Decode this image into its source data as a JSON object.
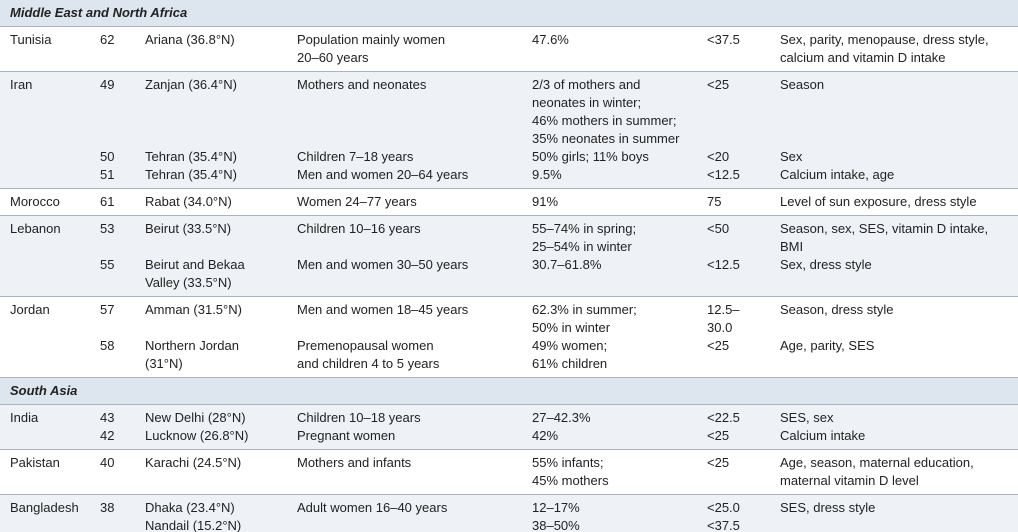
{
  "sections": [
    {
      "title": "Middle East and North Africa",
      "rows": [
        {
          "country": "Tunisia",
          "entries": [
            {
              "ref": "62",
              "location": [
                "Ariana (36.8°N)"
              ],
              "population": [
                "Population mainly women",
                "20–60 years"
              ],
              "prevalence": [
                "47.6%"
              ],
              "cutoff": [
                "<37.5"
              ],
              "factors": [
                "Sex, parity, menopause, dress style,",
                "calcium and vitamin D intake"
              ]
            }
          ]
        },
        {
          "country": "Iran",
          "entries": [
            {
              "ref": "49",
              "location": [
                "Zanjan (36.4°N)"
              ],
              "population": [
                "Mothers and neonates"
              ],
              "prevalence": [
                "2/3 of mothers and",
                "neonates in winter;",
                "46% mothers in summer;",
                "35% neonates in summer"
              ],
              "cutoff": [
                "<25"
              ],
              "factors": [
                "Season"
              ]
            },
            {
              "ref": "50",
              "location": [
                "Tehran (35.4°N)"
              ],
              "population": [
                "Children 7–18 years"
              ],
              "prevalence": [
                "50% girls; 11% boys"
              ],
              "cutoff": [
                "<20"
              ],
              "factors": [
                "Sex"
              ]
            },
            {
              "ref": "51",
              "location": [
                "Tehran (35.4°N)"
              ],
              "population": [
                "Men and women 20–64 years"
              ],
              "prevalence": [
                "9.5%"
              ],
              "cutoff": [
                "<12.5"
              ],
              "factors": [
                "Calcium intake, age"
              ]
            }
          ]
        },
        {
          "country": "Morocco",
          "entries": [
            {
              "ref": "61",
              "location": [
                "Rabat (34.0°N)"
              ],
              "population": [
                "Women 24–77 years"
              ],
              "prevalence": [
                "91%"
              ],
              "cutoff": [
                "75"
              ],
              "factors": [
                "Level of sun exposure, dress style"
              ]
            }
          ]
        },
        {
          "country": "Lebanon",
          "entries": [
            {
              "ref": "53",
              "location": [
                "Beirut (33.5°N)"
              ],
              "population": [
                "Children 10–16 years"
              ],
              "prevalence": [
                "55–74% in spring;",
                "25–54% in winter"
              ],
              "cutoff": [
                "<50"
              ],
              "factors": [
                "Season, sex, SES, vitamin D intake,",
                "BMI"
              ]
            },
            {
              "ref": "55",
              "location": [
                "Beirut and Bekaa",
                "Valley (33.5°N)"
              ],
              "population": [
                "Men and women 30–50 years"
              ],
              "prevalence": [
                "30.7–61.8%"
              ],
              "cutoff": [
                "<12.5"
              ],
              "factors": [
                "Sex, dress style"
              ]
            }
          ]
        },
        {
          "country": "Jordan",
          "entries": [
            {
              "ref": "57",
              "location": [
                "Amman (31.5°N)"
              ],
              "population": [
                "Men and women 18–45 years"
              ],
              "prevalence": [
                "62.3% in summer;",
                "50% in winter"
              ],
              "cutoff": [
                "12.5–",
                "30.0"
              ],
              "factors": [
                "Season, dress style"
              ]
            },
            {
              "ref": "58",
              "location": [
                "Northern Jordan",
                "(31°N)"
              ],
              "population": [
                "Premenopausal women",
                "and children 4 to 5 years"
              ],
              "prevalence": [
                "49% women;",
                "61% children"
              ],
              "cutoff": [
                "<25"
              ],
              "factors": [
                "Age, parity, SES"
              ]
            }
          ]
        }
      ]
    },
    {
      "title": "South Asia",
      "rows": [
        {
          "country": "India",
          "entries": [
            {
              "ref": "43",
              "location": [
                "New Delhi (28°N)"
              ],
              "population": [
                "Children 10–18 years"
              ],
              "prevalence": [
                "27–42.3%"
              ],
              "cutoff": [
                "<22.5"
              ],
              "factors": [
                "SES, sex"
              ]
            },
            {
              "ref": "42",
              "location": [
                "Lucknow (26.8°N)"
              ],
              "population": [
                "Pregnant women"
              ],
              "prevalence": [
                "42%"
              ],
              "cutoff": [
                "<25"
              ],
              "factors": [
                "Calcium intake"
              ]
            }
          ]
        },
        {
          "country": "Pakistan",
          "entries": [
            {
              "ref": "40",
              "location": [
                "Karachi (24.5°N)"
              ],
              "population": [
                "Mothers and infants"
              ],
              "prevalence": [
                "55% infants;",
                "45% mothers"
              ],
              "cutoff": [
                "<25"
              ],
              "factors": [
                "Age, season, maternal education,",
                "maternal vitamin D level"
              ]
            }
          ]
        },
        {
          "country": "Bangladesh",
          "entries": [
            {
              "ref": "38",
              "location": [
                "Dhaka (23.4°N)"
              ],
              "population": [
                "Adult women 16–40 years"
              ],
              "prevalence": [
                "12–17%"
              ],
              "cutoff": [
                "<25.0"
              ],
              "factors": [
                "SES, dress style"
              ]
            },
            {
              "location": [
                "Nandail (15.2°N)"
              ],
              "prevalence": [
                "38–50%"
              ],
              "cutoff": [
                "<37.5"
              ]
            }
          ]
        }
      ]
    }
  ]
}
